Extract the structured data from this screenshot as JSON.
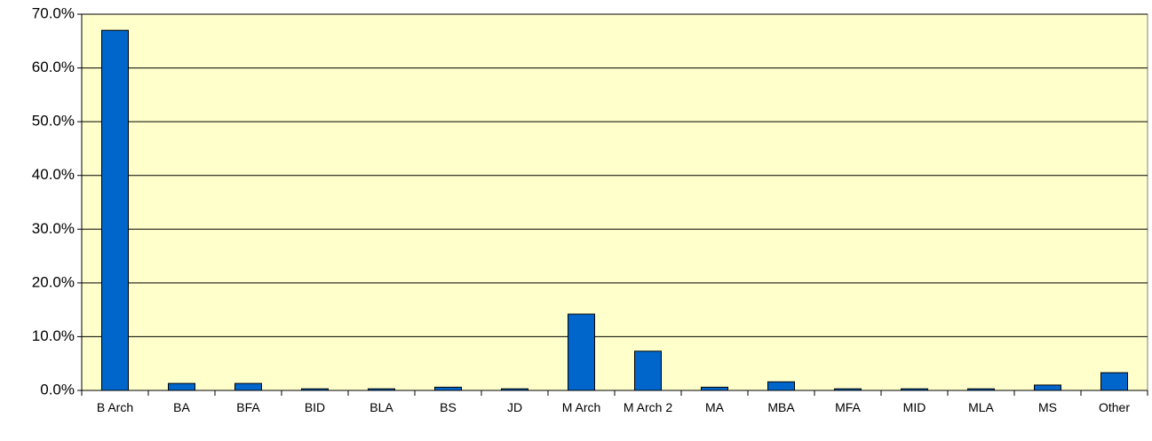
{
  "chart_data": {
    "type": "bar",
    "categories": [
      "B Arch",
      "BA",
      "BFA",
      "BID",
      "BLA",
      "BS",
      "JD",
      "M Arch",
      "M Arch 2",
      "MA",
      "MBA",
      "MFA",
      "MID",
      "MLA",
      "MS",
      "Other"
    ],
    "values": [
      67,
      1.3,
      1.3,
      0.3,
      0.3,
      0.6,
      0.3,
      14.2,
      7.3,
      0.6,
      1.6,
      0.3,
      0.3,
      0.3,
      1.0,
      3.3
    ],
    "color": "#0066cc",
    "ylim": [
      0,
      70
    ],
    "yticks": [
      {
        "value": 0,
        "label": "0.0%"
      },
      {
        "value": 10,
        "label": "10.0%"
      },
      {
        "value": 20,
        "label": "20.0%"
      },
      {
        "value": 30,
        "label": "30.0%"
      },
      {
        "value": 40,
        "label": "40.0%"
      },
      {
        "value": 50,
        "label": "50.0%"
      },
      {
        "value": 60,
        "label": "60.0%"
      },
      {
        "value": 70,
        "label": "70.0%"
      }
    ],
    "grid": true
  }
}
